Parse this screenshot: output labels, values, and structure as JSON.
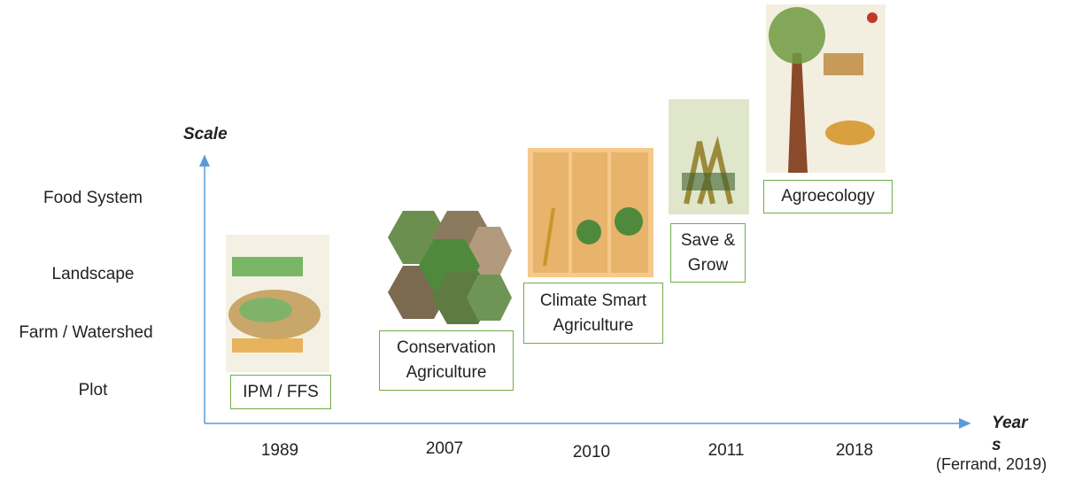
{
  "axis": {
    "y_label": "Scale",
    "x_label": "Years",
    "y_levels": [
      "Food System",
      "Landscape",
      "Farm / Watershed",
      "Plot"
    ]
  },
  "milestones": [
    {
      "year": "1989",
      "label": "IPM / FFS"
    },
    {
      "year": "2007",
      "label": "Conservation Agriculture"
    },
    {
      "year": "2010",
      "label": "Climate Smart Agriculture"
    },
    {
      "year": "2011",
      "label": "Save & Grow"
    },
    {
      "year": "2018",
      "label": "Agroecology"
    }
  ],
  "citation": "(Ferrand, 2019)"
}
